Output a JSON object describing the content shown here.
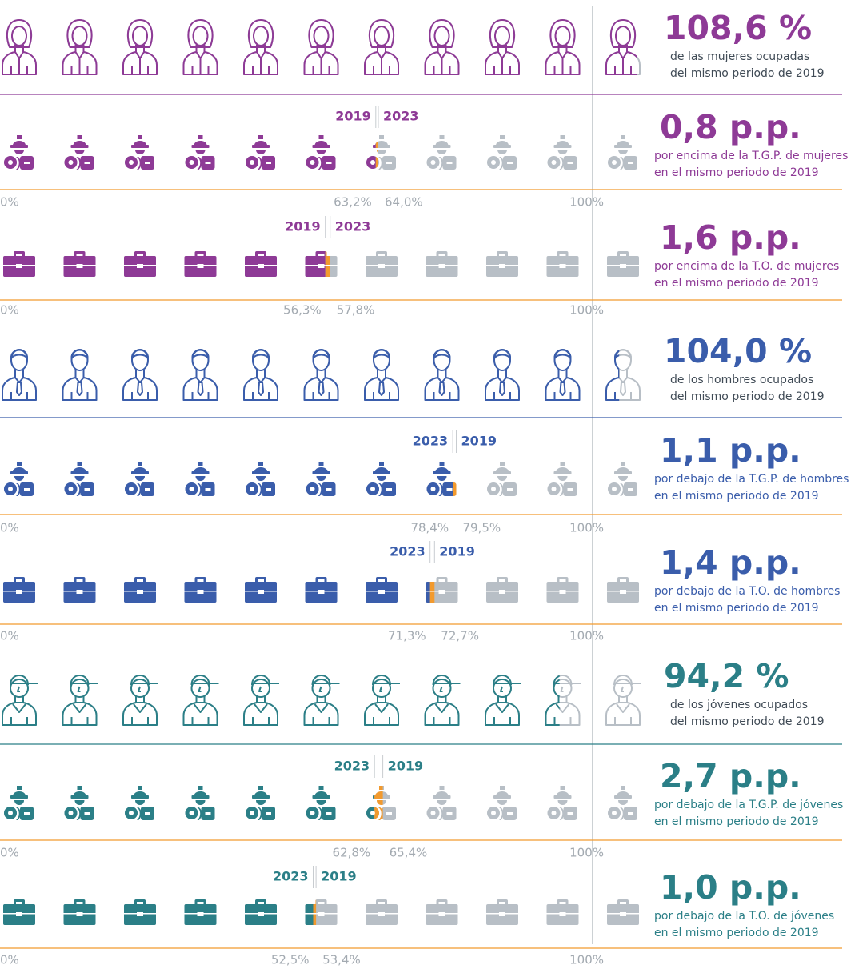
{
  "chart_data": [
    {
      "type": "pictogram",
      "icon": "woman",
      "color": "#8e3a96",
      "xlim": [
        0,
        110
      ],
      "values": [
        108.6
      ],
      "value_labels": [
        "108,6 %"
      ],
      "caption": [
        "de las mujeres ocupadas",
        "del mismo periodo de 2019"
      ]
    },
    {
      "type": "pictogram-compare",
      "icon": "worker",
      "color": "#8e3a96",
      "xlim": [
        0,
        110
      ],
      "xticks": [
        {
          "value": 0,
          "label": "0%"
        },
        {
          "value": 100,
          "label": "100%"
        }
      ],
      "series": [
        {
          "name": "2019",
          "values": [
            63.2
          ],
          "value_labels": [
            "63,2%"
          ]
        },
        {
          "name": "2023",
          "values": [
            64.0
          ],
          "value_labels": [
            "64,0%"
          ]
        }
      ],
      "headline": "0,8 p.p.",
      "caption": [
        "por encima de la T.G.P. de mujeres",
        "en el mismo periodo de 2019"
      ]
    },
    {
      "type": "pictogram-compare",
      "icon": "briefcase",
      "color": "#8e3a96",
      "xlim": [
        0,
        110
      ],
      "xticks": [
        {
          "value": 0,
          "label": "0%"
        },
        {
          "value": 100,
          "label": "100%"
        }
      ],
      "series": [
        {
          "name": "2019",
          "values": [
            56.3
          ],
          "value_labels": [
            "56,3%"
          ]
        },
        {
          "name": "2023",
          "values": [
            57.8
          ],
          "value_labels": [
            "57,8%"
          ]
        }
      ],
      "headline": "1,6 p.p.",
      "caption": [
        "por encima de la T.O. de mujeres",
        "en el mismo periodo de 2019"
      ]
    },
    {
      "type": "pictogram",
      "icon": "man",
      "color": "#3a5dab",
      "xlim": [
        0,
        110
      ],
      "values": [
        104.0
      ],
      "value_labels": [
        "104,0 %"
      ],
      "caption": [
        "de los hombres ocupados",
        "del mismo periodo de 2019"
      ]
    },
    {
      "type": "pictogram-compare",
      "icon": "worker",
      "color": "#3a5dab",
      "xlim": [
        0,
        110
      ],
      "xticks": [
        {
          "value": 0,
          "label": "0%"
        },
        {
          "value": 100,
          "label": "100%"
        }
      ],
      "series": [
        {
          "name": "2023",
          "values": [
            78.4
          ],
          "value_labels": [
            "78,4%"
          ]
        },
        {
          "name": "2019",
          "values": [
            79.5
          ],
          "value_labels": [
            "79,5%"
          ]
        }
      ],
      "headline": "1,1 p.p.",
      "caption": [
        "por debajo de la T.G.P. de hombres",
        "en el mismo periodo de 2019"
      ]
    },
    {
      "type": "pictogram-compare",
      "icon": "briefcase",
      "color": "#3a5dab",
      "xlim": [
        0,
        110
      ],
      "xticks": [
        {
          "value": 0,
          "label": "0%"
        },
        {
          "value": 100,
          "label": "100%"
        }
      ],
      "series": [
        {
          "name": "2023",
          "values": [
            71.3
          ],
          "value_labels": [
            "71,3%"
          ]
        },
        {
          "name": "2019",
          "values": [
            72.7
          ],
          "value_labels": [
            "72,7%"
          ]
        }
      ],
      "headline": "1,4 p.p.",
      "caption": [
        "por debajo de la T.O. de hombres",
        "en el mismo periodo de 2019"
      ]
    },
    {
      "type": "pictogram",
      "icon": "youth",
      "color": "#2b7f87",
      "xlim": [
        0,
        110
      ],
      "values": [
        94.2
      ],
      "value_labels": [
        "94,2 %"
      ],
      "caption": [
        "de los jóvenes ocupados",
        "del mismo periodo de 2019"
      ]
    },
    {
      "type": "pictogram-compare",
      "icon": "worker",
      "color": "#2b7f87",
      "xlim": [
        0,
        110
      ],
      "xticks": [
        {
          "value": 0,
          "label": "0%"
        },
        {
          "value": 100,
          "label": "100%"
        }
      ],
      "series": [
        {
          "name": "2023",
          "values": [
            62.8
          ],
          "value_labels": [
            "62,8%"
          ]
        },
        {
          "name": "2019",
          "values": [
            65.4
          ],
          "value_labels": [
            "65,4%"
          ]
        }
      ],
      "headline": "2,7 p.p.",
      "caption": [
        "por debajo de la T.G.P. de jóvenes",
        "en el mismo periodo de 2019"
      ]
    },
    {
      "type": "pictogram-compare",
      "icon": "briefcase",
      "color": "#2b7f87",
      "xlim": [
        0,
        110
      ],
      "xticks": [
        {
          "value": 0,
          "label": "0%"
        },
        {
          "value": 100,
          "label": "100%"
        }
      ],
      "series": [
        {
          "name": "2023",
          "values": [
            52.5
          ],
          "value_labels": [
            "52,5%"
          ]
        },
        {
          "name": "2019",
          "values": [
            53.4
          ],
          "value_labels": [
            "53,4%"
          ]
        }
      ],
      "headline": "1,0 p.p.",
      "caption": [
        "por debajo de la T.O. de jóvenes",
        "en el mismo periodo de 2019"
      ]
    }
  ]
}
